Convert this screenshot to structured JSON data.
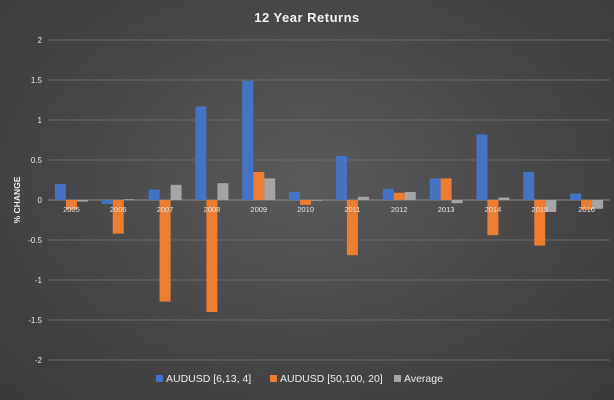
{
  "chart_data": {
    "type": "bar",
    "title": "12 Year Returns",
    "xlabel": "",
    "ylabel": "% CHANGE",
    "ylim": [
      -2,
      2
    ],
    "yticks": [
      "2",
      "1.5",
      "1",
      "0.5",
      "0",
      "-0.5",
      "-1",
      "-1.5",
      "-2"
    ],
    "ytick_values": [
      2,
      1.5,
      1,
      0.5,
      0,
      -0.5,
      -1,
      -1.5,
      -2
    ],
    "grid": true,
    "legend_position": "bottom",
    "categories": [
      "2005",
      "2006",
      "2007",
      "2008",
      "2009",
      "2010",
      "2011",
      "2012",
      "2013",
      "2014",
      "2015",
      "2016"
    ],
    "series": [
      {
        "name": "AUDUSD [6,13, 4]",
        "color": "#4472c4",
        "values": [
          0.2,
          -0.05,
          0.13,
          1.17,
          1.49,
          0.1,
          0.55,
          0.14,
          0.27,
          0.82,
          0.35,
          0.08
        ]
      },
      {
        "name": "AUDUSD [50,100, 20]",
        "color": "#ed7d31",
        "values": [
          -0.12,
          -0.42,
          -1.27,
          -1.4,
          0.35,
          -0.06,
          -0.69,
          0.09,
          0.27,
          -0.44,
          -0.57,
          -0.12
        ]
      },
      {
        "name": "Average",
        "color": "#a5a5a5",
        "values": [
          -0.02,
          0.01,
          0.19,
          0.21,
          0.27,
          0.0,
          0.04,
          0.1,
          -0.04,
          0.03,
          -0.15,
          -0.11
        ]
      }
    ]
  }
}
